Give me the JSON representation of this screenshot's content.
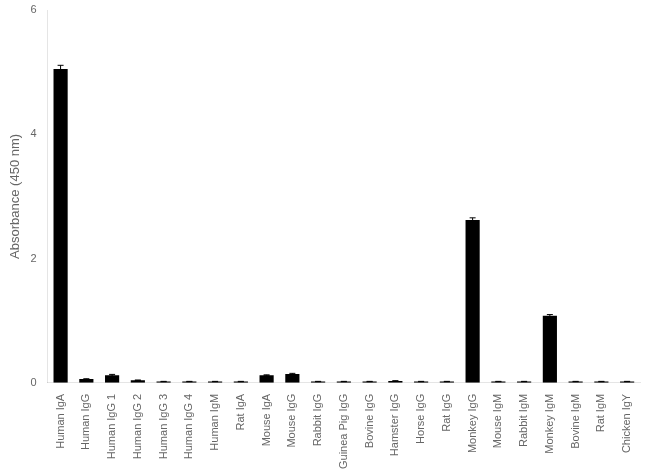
{
  "chart_data": {
    "type": "bar",
    "ylabel": "Absorbance (450 nm)",
    "categories": [
      "Human IgA",
      "Human IgG",
      "Human IgG 1",
      "Human IgG 2",
      "Human IgG 3",
      "Human IgG 4",
      "Human IgM",
      "Rat IgA",
      "Mouse IgA",
      "Mouse IgG",
      "Rabbit IgG",
      "Guinea Pig IgG",
      "Bovine IgG",
      "Hamster IgG",
      "Horse IgG",
      "Rat IgG",
      "Monkey IgG",
      "Mouse IgM",
      "Rabbit IgM",
      "Monkey IgM",
      "Bovine IgM",
      "Rat IgM",
      "Chicken IgY"
    ],
    "values": [
      5.05,
      0.06,
      0.12,
      0.04,
      0.02,
      0.02,
      0.02,
      0.02,
      0.12,
      0.14,
      0.02,
      0.02,
      0.02,
      0.03,
      0.02,
      0.02,
      2.62,
      0.02,
      0.02,
      1.08,
      0.02,
      0.02,
      0.02
    ],
    "errors": [
      0.06,
      0.005,
      0.015,
      0.005,
      0.003,
      0.003,
      0.003,
      0.003,
      0.008,
      0.012,
      0.003,
      0.003,
      0.003,
      0.003,
      0.003,
      0.003,
      0.035,
      0.003,
      0.003,
      0.018,
      0.003,
      0.003,
      0.003
    ],
    "color": "#000000",
    "ylim": [
      0,
      6
    ],
    "yticks": [
      0,
      2,
      4,
      6
    ],
    "grid": false
  }
}
